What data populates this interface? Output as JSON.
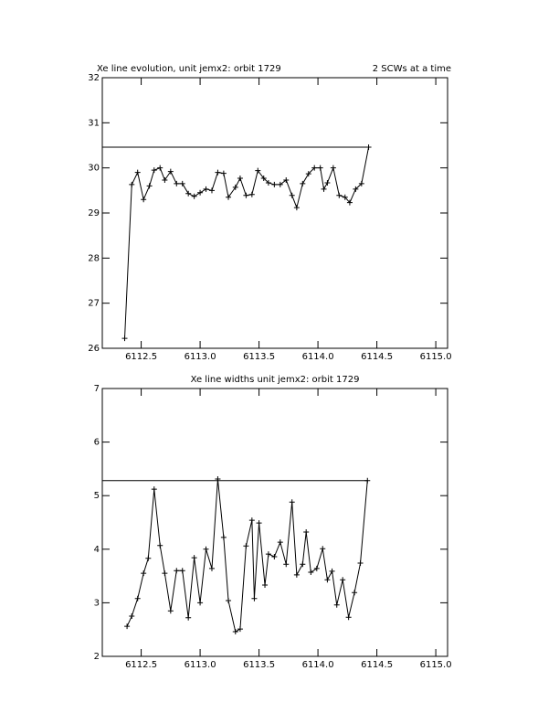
{
  "chart_data": [
    {
      "type": "line",
      "title": "Xe line evolution, unit jemx2: orbit 1729",
      "subtitle": "2 SCWs at a time",
      "xlim": [
        6112.17,
        6115.1
      ],
      "ylim": [
        26,
        32
      ],
      "xticks": [
        6112.5,
        {
          "value": 6113.0,
          "label": "6113.0"
        },
        6113.5,
        {
          "value": 6114.0,
          "label": "6114.0"
        },
        6114.5,
        {
          "value": 6115.0,
          "label": "6115.0"
        }
      ],
      "yticks": [
        26,
        27,
        28,
        29,
        30,
        31,
        32
      ],
      "series": [
        {
          "color": "#000000",
          "marker": "plus",
          "x": [
            6112.36,
            6112.42,
            6112.47,
            6112.52,
            6112.57,
            6112.61,
            6112.66,
            6112.7,
            6112.75,
            6112.8,
            6112.85,
            6112.9,
            6112.95,
            6113.0,
            6113.05,
            6113.1,
            6113.15,
            6113.2,
            6113.24,
            6113.3,
            6113.34,
            6113.39,
            6113.44,
            6113.49,
            6113.54,
            6113.58,
            6113.63,
            6113.68,
            6113.73,
            6113.78,
            6113.82,
            6113.87,
            6113.92,
            6113.97,
            6114.02,
            6114.05,
            6114.08,
            6114.13,
            6114.18,
            6114.23,
            6114.27,
            6114.32,
            6114.37,
            6114.43
          ],
          "values": [
            26.22,
            29.63,
            29.9,
            29.3,
            29.6,
            29.95,
            30.0,
            29.73,
            29.92,
            29.65,
            29.65,
            29.43,
            29.37,
            29.45,
            29.53,
            29.5,
            29.9,
            29.88,
            29.35,
            29.57,
            29.77,
            29.39,
            29.41,
            29.94,
            29.77,
            29.67,
            29.63,
            29.63,
            29.73,
            29.39,
            29.12,
            29.65,
            29.87,
            30.0,
            30.0,
            29.53,
            29.67,
            30.0,
            29.39,
            29.35,
            29.23,
            29.53,
            29.65,
            30.46
          ]
        },
        {
          "color": "#000000",
          "x": [
            6112.17,
            6114.43
          ],
          "values": [
            30.46,
            30.46
          ]
        }
      ]
    },
    {
      "type": "line",
      "title": "Xe line widths unit jemx2: orbit 1729",
      "xlim": [
        6112.17,
        6115.1
      ],
      "ylim": [
        2,
        7
      ],
      "xticks": [
        6112.5,
        {
          "value": 6113.0,
          "label": "6113.0"
        },
        6113.5,
        {
          "value": 6114.0,
          "label": "6114.0"
        },
        6114.5,
        {
          "value": 6115.0,
          "label": "6115.0"
        }
      ],
      "yticks": [
        2,
        3,
        4,
        5,
        6,
        7
      ],
      "series": [
        {
          "color": "#000000",
          "marker": "plus",
          "x": [
            6112.38,
            6112.42,
            6112.47,
            6112.52,
            6112.56,
            6112.61,
            6112.66,
            6112.7,
            6112.75,
            6112.8,
            6112.85,
            6112.9,
            6112.95,
            6113.0,
            6113.05,
            6113.1,
            6113.15,
            6113.2,
            6113.24,
            6113.3,
            6113.34,
            6113.39,
            6113.44,
            6113.46,
            6113.5,
            6113.55,
            6113.58,
            6113.63,
            6113.68,
            6113.73,
            6113.78,
            6113.82,
            6113.87,
            6113.9,
            6113.94,
            6113.99,
            6114.04,
            6114.08,
            6114.12,
            6114.16,
            6114.21,
            6114.26,
            6114.31,
            6114.36,
            6114.42
          ],
          "values": [
            2.56,
            2.75,
            3.08,
            3.55,
            3.83,
            5.12,
            4.07,
            3.55,
            2.85,
            3.6,
            3.6,
            2.72,
            3.84,
            3.0,
            4.0,
            3.64,
            5.31,
            4.22,
            3.04,
            2.46,
            2.51,
            4.06,
            4.54,
            3.08,
            4.49,
            3.33,
            3.91,
            3.86,
            4.13,
            3.72,
            4.88,
            3.52,
            3.72,
            4.32,
            3.57,
            3.64,
            4.01,
            3.43,
            3.59,
            2.96,
            3.43,
            2.73,
            3.19,
            3.74,
            5.28
          ]
        },
        {
          "color": "#000000",
          "x": [
            6112.17,
            6114.42
          ],
          "values": [
            5.28,
            5.28
          ]
        }
      ]
    }
  ]
}
